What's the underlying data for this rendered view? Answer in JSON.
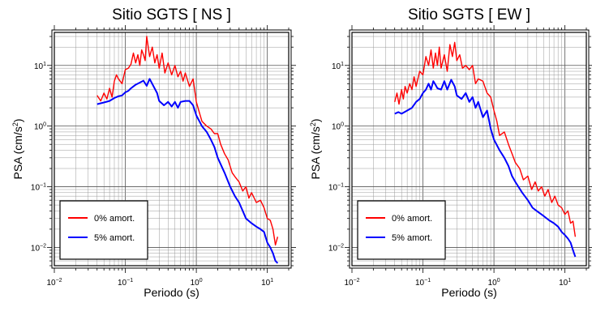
{
  "chart_data": [
    {
      "type": "line",
      "title": "Sitio SGTS [ NS ]",
      "xlabel": "Periodo (s)",
      "ylabel_main": "PSA (cm/s",
      "ylabel_sup": "2",
      "ylabel_close": ")",
      "xscale": "log",
      "yscale": "log",
      "xlim": [
        0.01,
        20
      ],
      "ylim": [
        0.005,
        35
      ],
      "grid": true,
      "legend_position": "bottom-left",
      "x_ticks": [
        {
          "value": 0.01,
          "base": "10",
          "exp": "−2"
        },
        {
          "value": 0.1,
          "base": "10",
          "exp": "−1"
        },
        {
          "value": 1,
          "base": "10",
          "exp": "0"
        },
        {
          "value": 10,
          "base": "10",
          "exp": "1"
        }
      ],
      "y_ticks": [
        {
          "value": 0.01,
          "base": "10",
          "exp": "−2"
        },
        {
          "value": 0.1,
          "base": "10",
          "exp": "−1"
        },
        {
          "value": 1,
          "base": "10",
          "exp": "0"
        },
        {
          "value": 10,
          "base": "10",
          "exp": "1"
        }
      ],
      "series": [
        {
          "name": "0% amort.",
          "color": "#ff0000",
          "x": [
            0.04,
            0.045,
            0.05,
            0.055,
            0.06,
            0.065,
            0.07,
            0.075,
            0.08,
            0.09,
            0.1,
            0.11,
            0.12,
            0.13,
            0.14,
            0.15,
            0.16,
            0.17,
            0.18,
            0.19,
            0.2,
            0.22,
            0.24,
            0.26,
            0.28,
            0.3,
            0.33,
            0.36,
            0.4,
            0.45,
            0.5,
            0.55,
            0.6,
            0.65,
            0.7,
            0.8,
            0.9,
            1.0,
            1.1,
            1.2,
            1.4,
            1.6,
            1.8,
            2.0,
            2.2,
            2.5,
            2.8,
            3.2,
            3.6,
            4.0,
            4.5,
            5.0,
            5.5,
            6.0,
            7.0,
            8.0,
            9.0,
            10.0,
            11.0,
            12.0,
            13.0,
            14.0
          ],
          "y": [
            3.2,
            2.6,
            3.5,
            2.8,
            4.2,
            3.0,
            5.5,
            7.0,
            6.0,
            5.0,
            8.5,
            9.0,
            10.5,
            16.0,
            11.0,
            15.0,
            10.0,
            18.0,
            15.0,
            12.0,
            30.0,
            14.0,
            20.0,
            11.0,
            15.0,
            9.0,
            16.0,
            7.5,
            11.0,
            7.0,
            10.0,
            6.5,
            8.0,
            5.5,
            7.5,
            4.5,
            6.0,
            2.5,
            1.7,
            1.2,
            1.0,
            0.9,
            0.75,
            0.75,
            0.5,
            0.35,
            0.28,
            0.17,
            0.14,
            0.12,
            0.085,
            0.1,
            0.065,
            0.08,
            0.055,
            0.06,
            0.045,
            0.03,
            0.028,
            0.02,
            0.011,
            0.015
          ]
        },
        {
          "name": "5% amort.",
          "color": "#0000ff",
          "x": [
            0.04,
            0.05,
            0.06,
            0.07,
            0.08,
            0.09,
            0.1,
            0.11,
            0.12,
            0.13,
            0.14,
            0.16,
            0.18,
            0.2,
            0.22,
            0.25,
            0.28,
            0.3,
            0.35,
            0.4,
            0.45,
            0.5,
            0.55,
            0.6,
            0.7,
            0.8,
            0.9,
            1.0,
            1.2,
            1.4,
            1.6,
            1.8,
            2.0,
            2.5,
            3.0,
            3.5,
            4.0,
            4.5,
            5.0,
            6.0,
            7.0,
            8.0,
            9.0,
            10.0,
            11.0,
            12.0,
            13.0,
            14.0
          ],
          "y": [
            2.3,
            2.45,
            2.6,
            2.9,
            3.1,
            3.2,
            3.6,
            3.8,
            4.2,
            4.5,
            4.8,
            5.2,
            5.6,
            4.6,
            6.0,
            4.5,
            3.5,
            2.6,
            2.2,
            2.5,
            2.1,
            2.5,
            2.0,
            2.5,
            2.6,
            2.6,
            2.2,
            1.5,
            1.0,
            0.8,
            0.6,
            0.45,
            0.3,
            0.17,
            0.1,
            0.07,
            0.055,
            0.04,
            0.03,
            0.025,
            0.022,
            0.02,
            0.018,
            0.012,
            0.01,
            0.008,
            0.006,
            0.0055
          ]
        }
      ]
    },
    {
      "type": "line",
      "title": "Sitio SGTS [ EW ]",
      "xlabel": "Periodo (s)",
      "ylabel_main": "PSA (cm/s",
      "ylabel_sup": "2",
      "ylabel_close": ")",
      "xscale": "log",
      "yscale": "log",
      "xlim": [
        0.01,
        20
      ],
      "ylim": [
        0.005,
        35
      ],
      "grid": true,
      "legend_position": "bottom-left",
      "x_ticks": [
        {
          "value": 0.01,
          "base": "10",
          "exp": "−2"
        },
        {
          "value": 0.1,
          "base": "10",
          "exp": "−1"
        },
        {
          "value": 1,
          "base": "10",
          "exp": "0"
        },
        {
          "value": 10,
          "base": "10",
          "exp": "1"
        }
      ],
      "y_ticks": [
        {
          "value": 0.01,
          "base": "10",
          "exp": "−2"
        },
        {
          "value": 0.1,
          "base": "10",
          "exp": "−1"
        },
        {
          "value": 1,
          "base": "10",
          "exp": "0"
        },
        {
          "value": 10,
          "base": "10",
          "exp": "1"
        }
      ],
      "series": [
        {
          "name": "0% amort.",
          "color": "#ff0000",
          "x": [
            0.04,
            0.043,
            0.046,
            0.05,
            0.053,
            0.056,
            0.06,
            0.065,
            0.07,
            0.075,
            0.08,
            0.09,
            0.1,
            0.11,
            0.12,
            0.13,
            0.14,
            0.15,
            0.16,
            0.17,
            0.18,
            0.2,
            0.22,
            0.24,
            0.26,
            0.28,
            0.3,
            0.33,
            0.36,
            0.4,
            0.45,
            0.5,
            0.55,
            0.6,
            0.7,
            0.8,
            0.9,
            1.0,
            1.1,
            1.2,
            1.4,
            1.6,
            1.8,
            2.0,
            2.3,
            2.6,
            3.0,
            3.4,
            3.8,
            4.2,
            4.7,
            5.2,
            5.8,
            6.5,
            7.2,
            8.0,
            9.0,
            10.0,
            11.0,
            12.0,
            13.0,
            14.0
          ],
          "y": [
            2.5,
            3.5,
            2.3,
            4.0,
            2.8,
            4.5,
            3.5,
            5.0,
            4.0,
            6.5,
            4.5,
            8.0,
            7.0,
            14.0,
            10.0,
            18.0,
            9.0,
            16.0,
            10.0,
            20.0,
            9.0,
            15.0,
            8.0,
            22.0,
            14.0,
            24.0,
            12.0,
            15.0,
            9.0,
            10.0,
            8.5,
            10.0,
            5.0,
            6.0,
            5.5,
            3.5,
            3.0,
            1.8,
            1.2,
            0.7,
            0.8,
            0.5,
            0.35,
            0.25,
            0.2,
            0.13,
            0.15,
            0.09,
            0.12,
            0.085,
            0.1,
            0.07,
            0.09,
            0.055,
            0.07,
            0.05,
            0.045,
            0.035,
            0.04,
            0.025,
            0.027,
            0.015
          ]
        },
        {
          "name": "5% amort.",
          "color": "#0000ff",
          "x": [
            0.04,
            0.045,
            0.05,
            0.06,
            0.07,
            0.08,
            0.09,
            0.1,
            0.11,
            0.12,
            0.13,
            0.14,
            0.15,
            0.16,
            0.18,
            0.2,
            0.22,
            0.25,
            0.28,
            0.3,
            0.35,
            0.4,
            0.45,
            0.5,
            0.55,
            0.6,
            0.7,
            0.8,
            0.9,
            1.0,
            1.2,
            1.4,
            1.6,
            1.8,
            2.0,
            2.5,
            3.0,
            3.5,
            4.0,
            5.0,
            6.0,
            7.0,
            8.0,
            9.0,
            10.0,
            11.0,
            12.0,
            13.0,
            14.0
          ],
          "y": [
            1.6,
            1.7,
            1.6,
            1.8,
            2.0,
            2.5,
            2.8,
            3.5,
            4.0,
            5.0,
            4.0,
            5.5,
            4.8,
            4.2,
            4.0,
            5.5,
            4.0,
            5.8,
            4.5,
            3.2,
            2.8,
            3.5,
            2.5,
            3.0,
            2.0,
            2.5,
            1.4,
            1.8,
            0.9,
            0.6,
            0.4,
            0.3,
            0.22,
            0.15,
            0.12,
            0.08,
            0.06,
            0.045,
            0.04,
            0.033,
            0.028,
            0.025,
            0.022,
            0.018,
            0.016,
            0.014,
            0.012,
            0.009,
            0.007
          ]
        }
      ]
    }
  ]
}
